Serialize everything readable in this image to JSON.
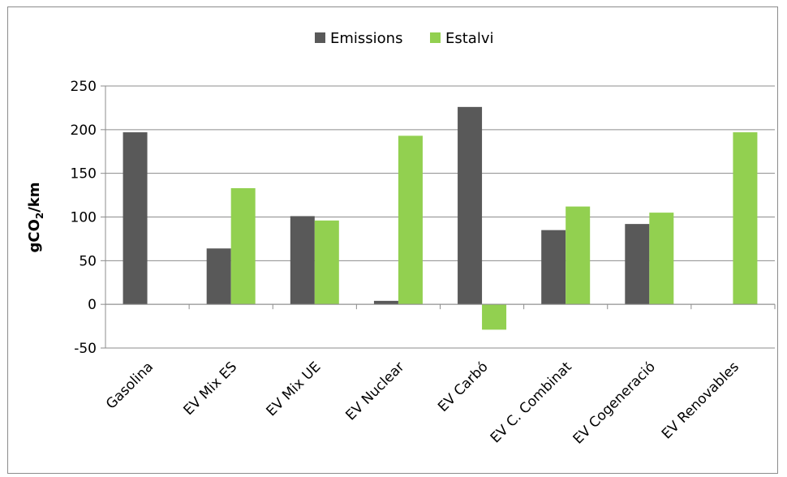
{
  "chart_data": {
    "type": "bar",
    "categories": [
      "Gasolina",
      "EV Mix ES",
      "EV Mix UE",
      "EV Nuclear",
      "EV Carbó",
      "EV C. Combinat",
      "EV Cogeneració",
      "EV Renovables"
    ],
    "series": [
      {
        "name": "Emissions",
        "color": "#595959",
        "values": [
          197,
          64,
          101,
          4,
          226,
          85,
          92,
          0
        ]
      },
      {
        "name": "Estalvi",
        "color": "#92d050",
        "values": [
          0,
          133,
          96,
          193,
          -29,
          112,
          105,
          197
        ]
      }
    ],
    "ylabel_main": "gCO",
    "ylabel_sub": "2",
    "ylabel_suffix": "/km",
    "ylim": [
      -50,
      250
    ],
    "yticks": [
      "250",
      "200",
      "150",
      "100",
      "50",
      "0",
      "-50"
    ],
    "legend_position": "top-center",
    "grid": true
  }
}
